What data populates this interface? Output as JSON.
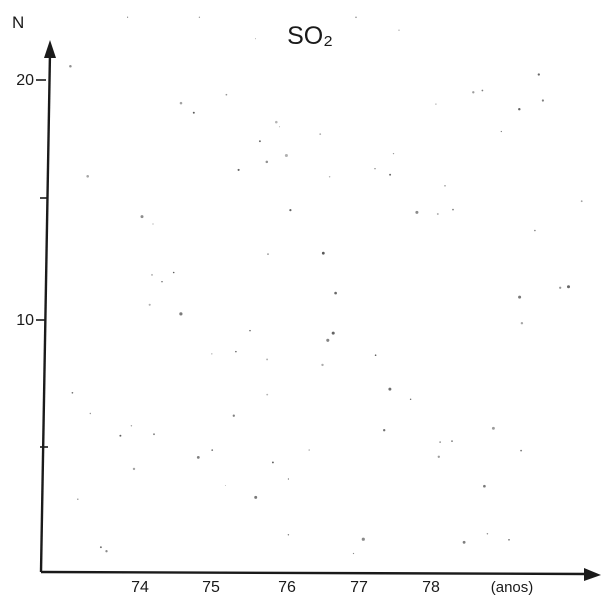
{
  "chart_data": {
    "type": "scatter",
    "title": "SO₂",
    "ylabel": "N",
    "xlabel": "(anos)",
    "x_ticks": [
      "74",
      "75",
      "76",
      "77",
      "78"
    ],
    "y_ticks": [
      "20",
      "10"
    ],
    "y_minor_ticks": [
      5,
      15
    ],
    "xlim": [
      72.8,
      80.2
    ],
    "ylim": [
      0,
      21.5
    ],
    "grid": false,
    "legend": "none",
    "series": [
      {
        "x": [],
        "y": []
      }
    ]
  }
}
